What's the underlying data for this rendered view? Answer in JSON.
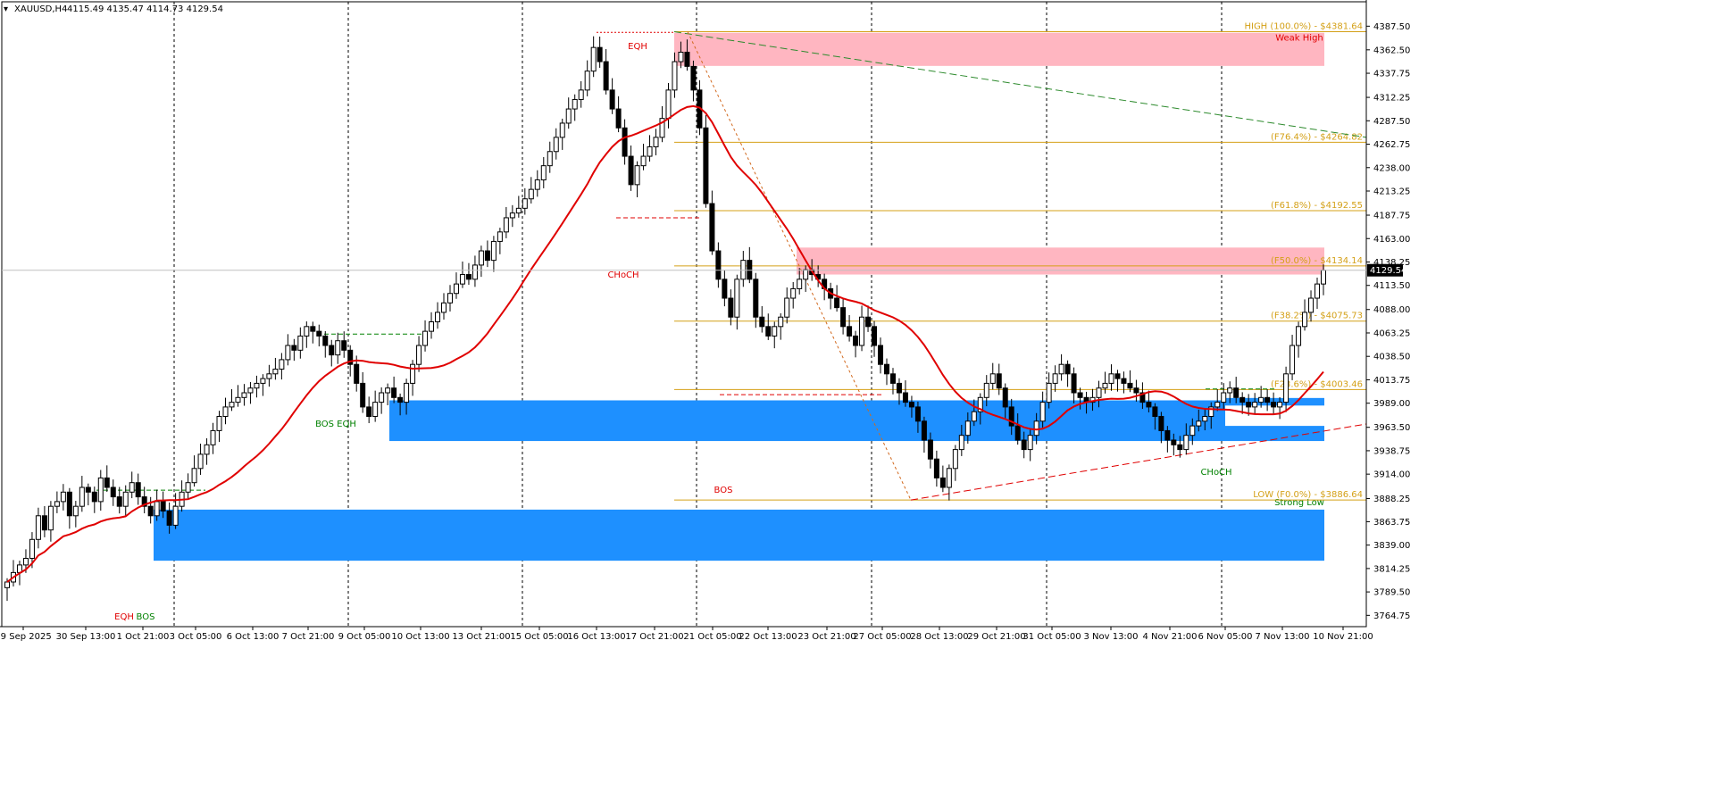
{
  "header": {
    "symbol": "XAUUSD,H4",
    "ohlc": "4115.49 4135.47 4114.73 4129.54"
  },
  "chart_data": {
    "type": "candlestick",
    "symbol": "XAUUSD",
    "timeframe": "H4",
    "ylim": [
      3752.8,
      4396.3
    ],
    "y_ticks": [
      4387.5,
      4362.5,
      4337.75,
      4312.25,
      4287.5,
      4262.75,
      4238.0,
      4213.25,
      4187.75,
      4163.0,
      4138.25,
      4113.5,
      4088.0,
      4063.25,
      4038.5,
      4013.75,
      3989.0,
      3963.5,
      3938.75,
      3914.0,
      3888.25,
      3863.75,
      3839.0,
      3814.25,
      3789.5,
      3764.75
    ],
    "y_tick_labels": [
      "4387.50",
      "4362.50",
      "4337.75",
      "4312.25",
      "4287.50",
      "4262.75",
      "4238.00",
      "4213.25",
      "4187.75",
      "4163.00",
      "4138.25",
      "4113.50",
      "4088.00",
      "4063.25",
      "4038.50",
      "4013.75",
      "3989.00",
      "3963.50",
      "3938.75",
      "3914.00",
      "3888.25",
      "3863.75",
      "3839.00",
      "3814.25",
      "3789.50",
      "3764.75"
    ],
    "x_tick_labels": [
      "29 Sep 2025",
      "30 Sep 13:00",
      "1 Oct 21:00",
      "3 Oct 05:00",
      "6 Oct 13:00",
      "7 Oct 21:00",
      "9 Oct 05:00",
      "10 Oct 13:00",
      "13 Oct 21:00",
      "15 Oct 05:00",
      "16 Oct 13:00",
      "17 Oct 21:00",
      "21 Oct 05:00",
      "22 Oct 13:00",
      "23 Oct 21:00",
      "27 Oct 05:00",
      "28 Oct 13:00",
      "29 Oct 21:00",
      "31 Oct 05:00",
      "3 Nov 13:00",
      "4 Nov 21:00",
      "6 Nov 05:00",
      "7 Nov 13:00",
      "10 Nov 21:00"
    ],
    "current_price": 4129.54,
    "current_price_label": "4129.54",
    "closes": [
      3800,
      3810,
      3818,
      3825,
      3845,
      3870,
      3855,
      3880,
      3885,
      3895,
      3870,
      3880,
      3900,
      3895,
      3885,
      3910,
      3900,
      3890,
      3880,
      3895,
      3905,
      3890,
      3880,
      3870,
      3885,
      3875,
      3860,
      3880,
      3895,
      3905,
      3920,
      3935,
      3945,
      3960,
      3975,
      3985,
      3990,
      3995,
      4000,
      4005,
      4010,
      4015,
      4020,
      4025,
      4035,
      4050,
      4045,
      4060,
      4070,
      4065,
      4060,
      4050,
      4040,
      4055,
      4045,
      4030,
      4010,
      3985,
      3975,
      3990,
      4000,
      4005,
      3995,
      3990,
      4010,
      4030,
      4050,
      4065,
      4075,
      4085,
      4095,
      4105,
      4115,
      4125,
      4120,
      4135,
      4150,
      4140,
      4160,
      4170,
      4185,
      4190,
      4195,
      4205,
      4215,
      4225,
      4240,
      4255,
      4270,
      4285,
      4300,
      4310,
      4320,
      4340,
      4365,
      4350,
      4320,
      4300,
      4280,
      4250,
      4220,
      4240,
      4250,
      4260,
      4270,
      4290,
      4320,
      4350,
      4360,
      4345,
      4320,
      4280,
      4200,
      4150,
      4120,
      4100,
      4080,
      4120,
      4140,
      4120,
      4080,
      4070,
      4060,
      4070,
      4080,
      4100,
      4110,
      4120,
      4130,
      4125,
      4120,
      4110,
      4100,
      4090,
      4070,
      4060,
      4050,
      4080,
      4070,
      4050,
      4030,
      4020,
      4010,
      4000,
      3990,
      3985,
      3970,
      3950,
      3930,
      3910,
      3900,
      3920,
      3940,
      3955,
      3970,
      3980,
      3995,
      4010,
      4020,
      4005,
      3985,
      3965,
      3950,
      3940,
      3955,
      3970,
      3990,
      4010,
      4020,
      4030,
      4020,
      4000,
      3995,
      3990,
      3995,
      4005,
      4010,
      4020,
      4015,
      4010,
      4005,
      4000,
      3990,
      3985,
      3975,
      3960,
      3950,
      3945,
      3940,
      3955,
      3965,
      3970,
      3975,
      3985,
      3990,
      4000,
      4005,
      3995,
      3990,
      3985,
      3990,
      3995,
      3990,
      3985,
      3990,
      4020,
      4050,
      4070,
      4085,
      4100,
      4115,
      4129.54
    ],
    "indicators": {
      "ma": {
        "name": "",
        "color": "#e00000",
        "period": 20
      }
    },
    "zones": [
      {
        "type": "supply",
        "label": "Weak High",
        "y_top": 4380.5,
        "y_bottom": 4345.5,
        "color": "#ffb6c1"
      },
      {
        "type": "supply",
        "label": "",
        "y_top": 4153.5,
        "y_bottom": 4125.0,
        "color": "#ffb6c1"
      },
      {
        "type": "demand",
        "label": "",
        "y_top": 3994.5,
        "y_bottom": 3986.5,
        "color": "#1e90ff"
      },
      {
        "type": "demand",
        "label": "",
        "y_top": 3992.0,
        "y_bottom": 3949.0,
        "color": "#1e90ff"
      },
      {
        "type": "demand",
        "label": "Strong Low",
        "y_top": 3876.5,
        "y_bottom": 3822.5,
        "color": "#1e90ff"
      }
    ],
    "fib_levels": [
      {
        "label": "HIGH (100.0%) - $4381.64",
        "value": 4381.64
      },
      {
        "label": "(F76.4%) - $4264.82",
        "value": 4264.82
      },
      {
        "label": "(F61.8%) - $4192.55",
        "value": 4192.55
      },
      {
        "label": "(F50.0%) - $4134.14",
        "value": 4134.14
      },
      {
        "label": "(F38.2%) - $4075.73",
        "value": 4075.73
      },
      {
        "label": "(F23.6%) - $4003.46",
        "value": 4003.46
      },
      {
        "label": "LOW (F0.0%) - $3886.64",
        "value": 3886.64
      }
    ],
    "annotations": [
      {
        "text": "EQH",
        "color": "#e00000",
        "x_index": 110,
        "y": 4376
      },
      {
        "text": "CHoCH",
        "color": "#e00000",
        "x_index": 108,
        "y": 4183
      },
      {
        "text": "BOS",
        "color": "#e00000",
        "x_index": 125,
        "y": 3994
      },
      {
        "text": "BOS EQH",
        "color": "#008000",
        "x_index": 53,
        "y": 4056
      },
      {
        "text": "EQH",
        "color": "#e00000",
        "x_index": 20,
        "y": 3894
      },
      {
        "text": "BOS",
        "color": "#008000",
        "x_index": 24,
        "y": 3894
      },
      {
        "text": "CHoCH",
        "color": "#008000",
        "x_index": 206,
        "y": 4009
      }
    ]
  }
}
